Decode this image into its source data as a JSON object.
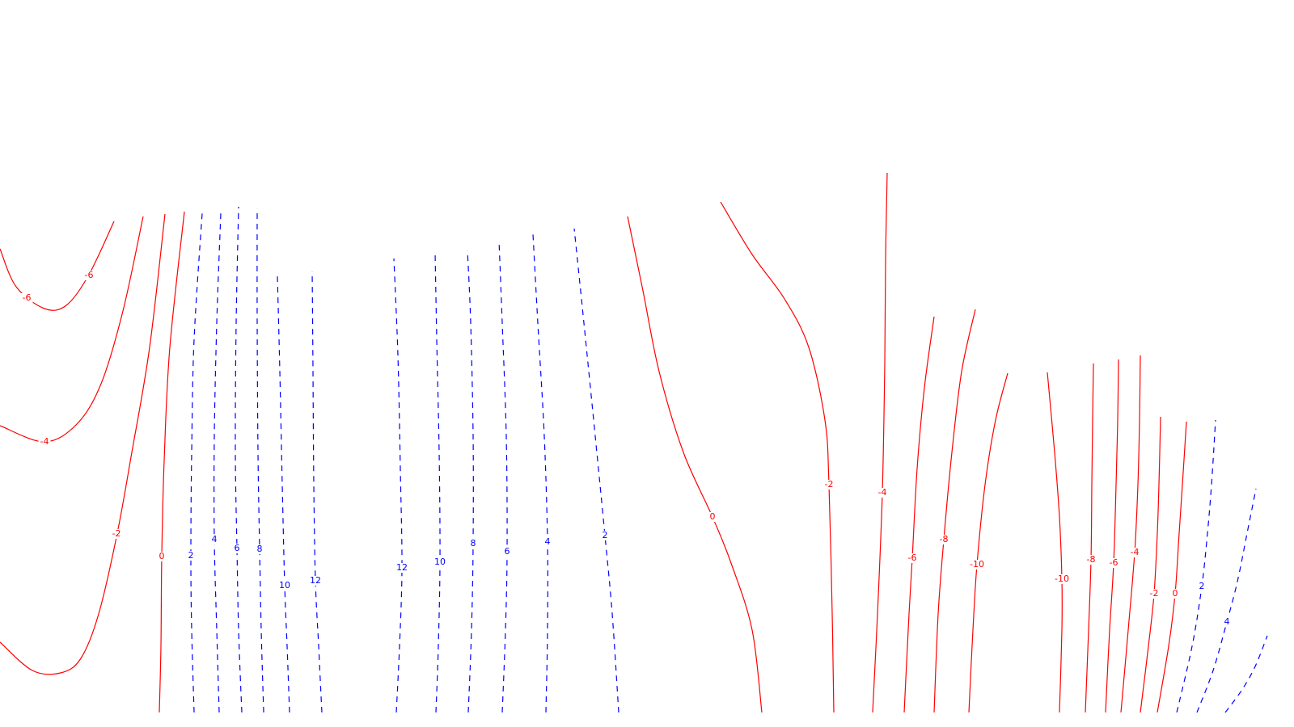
{
  "chart_data": {
    "type": "contour",
    "title": "",
    "xlabel": "",
    "ylabel": "",
    "grid": false,
    "legend": "none",
    "colors": {
      "negative": "#ff0000",
      "positive": "#0000ff"
    },
    "line_styles": {
      "negative": "solid",
      "positive": "dashed"
    },
    "contours": [
      {
        "level": "-6",
        "sign": "neg",
        "points": [
          [
            0,
            308
          ],
          [
            20,
            355
          ],
          [
            55,
            382
          ],
          [
            82,
            378
          ],
          [
            110,
            340
          ],
          [
            141,
            274
          ]
        ],
        "labels": [
          [
            33,
            369
          ],
          [
            110,
            341
          ]
        ]
      },
      {
        "level": "-4",
        "sign": "neg",
        "points": [
          [
            0,
            527
          ],
          [
            55,
            547
          ],
          [
            95,
            525
          ],
          [
            125,
            475
          ],
          [
            152,
            385
          ],
          [
            177,
            268
          ]
        ],
        "labels": [
          [
            55,
            547
          ]
        ]
      },
      {
        "level": "-2",
        "sign": "neg",
        "points": [
          [
            0,
            795
          ],
          [
            40,
            830
          ],
          [
            75,
            833
          ],
          [
            100,
            815
          ],
          [
            122,
            760
          ],
          [
            145,
            660
          ],
          [
            163,
            560
          ],
          [
            185,
            430
          ],
          [
            204,
            265
          ]
        ],
        "labels": [
          [
            144,
            661
          ]
        ]
      },
      {
        "level": "0",
        "sign": "neg",
        "points": [
          [
            197,
            882
          ],
          [
            199,
            800
          ],
          [
            200,
            688
          ],
          [
            203,
            570
          ],
          [
            210,
            430
          ],
          [
            228,
            262
          ]
        ],
        "labels": [
          [
            200,
            689
          ]
        ]
      },
      {
        "level": "2",
        "sign": "pos",
        "points": [
          [
            240,
            882
          ],
          [
            237,
            780
          ],
          [
            236,
            687
          ],
          [
            237,
            560
          ],
          [
            240,
            420
          ],
          [
            250,
            264
          ]
        ],
        "labels": [
          [
            236,
            688
          ]
        ]
      },
      {
        "level": "4",
        "sign": "pos",
        "points": [
          [
            271,
            882
          ],
          [
            268,
            780
          ],
          [
            265,
            668
          ],
          [
            265,
            540
          ],
          [
            268,
            400
          ],
          [
            273,
            264
          ]
        ],
        "labels": [
          [
            265,
            668
          ]
        ]
      },
      {
        "level": "6",
        "sign": "pos",
        "points": [
          [
            299,
            882
          ],
          [
            295,
            780
          ],
          [
            293,
            679
          ],
          [
            291,
            560
          ],
          [
            292,
            400
          ],
          [
            295,
            256
          ]
        ],
        "labels": [
          [
            293,
            679
          ]
        ]
      },
      {
        "level": "8",
        "sign": "pos",
        "points": [
          [
            326,
            882
          ],
          [
            323,
            780
          ],
          [
            321,
            680
          ],
          [
            319,
            560
          ],
          [
            318,
            400
          ],
          [
            318,
            258
          ]
        ],
        "labels": [
          [
            321,
            680
          ]
        ]
      },
      {
        "level": "10",
        "sign": "pos",
        "points": [
          [
            358,
            882
          ],
          [
            355,
            800
          ],
          [
            352,
            725
          ],
          [
            349,
            600
          ],
          [
            346,
            460
          ],
          [
            343,
            342
          ]
        ],
        "labels": [
          [
            352,
            725
          ]
        ]
      },
      {
        "level": "12",
        "sign": "pos",
        "points": [
          [
            398,
            882
          ],
          [
            394,
            800
          ],
          [
            390,
            719
          ],
          [
            388,
            600
          ],
          [
            387,
            460
          ],
          [
            386,
            336
          ]
        ],
        "labels": [
          [
            390,
            719
          ]
        ]
      },
      {
        "level": "12",
        "sign": "pos",
        "points": [
          [
            490,
            882
          ],
          [
            494,
            800
          ],
          [
            497,
            703
          ],
          [
            495,
            580
          ],
          [
            492,
            440
          ],
          [
            487,
            320
          ]
        ],
        "labels": [
          [
            497,
            703
          ]
        ]
      },
      {
        "level": "10",
        "sign": "pos",
        "points": [
          [
            539,
            882
          ],
          [
            542,
            800
          ],
          [
            544,
            696
          ],
          [
            543,
            560
          ],
          [
            540,
            420
          ],
          [
            538,
            312
          ]
        ],
        "labels": [
          [
            544,
            696
          ]
        ]
      },
      {
        "level": "8",
        "sign": "pos",
        "points": [
          [
            579,
            882
          ],
          [
            583,
            780
          ],
          [
            585,
            673
          ],
          [
            585,
            540
          ],
          [
            582,
            400
          ],
          [
            578,
            310
          ]
        ],
        "labels": [
          [
            585,
            673
          ]
        ]
      },
      {
        "level": "6",
        "sign": "pos",
        "points": [
          [
            621,
            882
          ],
          [
            625,
            780
          ],
          [
            627,
            683
          ],
          [
            626,
            540
          ],
          [
            621,
            400
          ],
          [
            617,
            298
          ]
        ],
        "labels": [
          [
            627,
            683
          ]
        ]
      },
      {
        "level": "4",
        "sign": "pos",
        "points": [
          [
            675,
            882
          ],
          [
            677,
            780
          ],
          [
            677,
            671
          ],
          [
            673,
            540
          ],
          [
            665,
            400
          ],
          [
            659,
            290
          ]
        ],
        "labels": [
          [
            677,
            671
          ]
        ]
      },
      {
        "level": "2",
        "sign": "pos",
        "points": [
          [
            765,
            882
          ],
          [
            757,
            760
          ],
          [
            748,
            663
          ],
          [
            736,
            540
          ],
          [
            722,
            400
          ],
          [
            710,
            283
          ]
        ],
        "labels": [
          [
            748,
            663
          ]
        ]
      },
      {
        "level": "0",
        "sign": "neg",
        "points": [
          [
            942,
            882
          ],
          [
            930,
            780
          ],
          [
            905,
            700
          ],
          [
            881,
            640
          ],
          [
            845,
            560
          ],
          [
            815,
            460
          ],
          [
            795,
            360
          ],
          [
            776,
            268
          ]
        ],
        "labels": [
          [
            881,
            640
          ]
        ]
      },
      {
        "level": "-2",
        "sign": "neg",
        "points": [
          [
            1031,
            882
          ],
          [
            1029,
            760
          ],
          [
            1025,
            600
          ],
          [
            1020,
            520
          ],
          [
            1000,
            430
          ],
          [
            970,
            370
          ],
          [
            930,
            315
          ],
          [
            891,
            250
          ]
        ],
        "labels": [
          [
            1025,
            600
          ]
        ]
      },
      {
        "level": "-4",
        "sign": "neg",
        "points": [
          [
            1079,
            882
          ],
          [
            1085,
            760
          ],
          [
            1091,
            610
          ],
          [
            1094,
            450
          ],
          [
            1095,
            320
          ],
          [
            1097,
            214
          ]
        ],
        "labels": [
          [
            1091,
            610
          ]
        ]
      },
      {
        "level": "-6",
        "sign": "neg",
        "points": [
          [
            1118,
            882
          ],
          [
            1124,
            760
          ],
          [
            1128,
            691
          ],
          [
            1134,
            580
          ],
          [
            1143,
            480
          ],
          [
            1155,
            392
          ]
        ],
        "labels": [
          [
            1128,
            691
          ]
        ]
      },
      {
        "level": "-8",
        "sign": "neg",
        "points": [
          [
            1155,
            882
          ],
          [
            1160,
            760
          ],
          [
            1167,
            668
          ],
          [
            1177,
            560
          ],
          [
            1189,
            460
          ],
          [
            1206,
            383
          ]
        ],
        "labels": [
          [
            1167,
            668
          ]
        ]
      },
      {
        "level": "-10",
        "sign": "neg",
        "points": [
          [
            1198,
            882
          ],
          [
            1203,
            780
          ],
          [
            1208,
            699
          ],
          [
            1218,
            600
          ],
          [
            1231,
            520
          ],
          [
            1246,
            462
          ]
        ],
        "labels": [
          [
            1208,
            699
          ]
        ]
      },
      {
        "level": "-10",
        "sign": "neg",
        "points": [
          [
            1310,
            882
          ],
          [
            1313,
            780
          ],
          [
            1313,
            717
          ],
          [
            1310,
            640
          ],
          [
            1304,
            560
          ],
          [
            1295,
            461
          ]
        ],
        "labels": [
          [
            1313,
            717
          ]
        ]
      },
      {
        "level": "-8",
        "sign": "neg",
        "points": [
          [
            1342,
            882
          ],
          [
            1346,
            780
          ],
          [
            1349,
            693
          ],
          [
            1350,
            600
          ],
          [
            1351,
            520
          ],
          [
            1352,
            450
          ]
        ],
        "labels": [
          [
            1349,
            693
          ]
        ]
      },
      {
        "level": "-6",
        "sign": "neg",
        "points": [
          [
            1367,
            882
          ],
          [
            1372,
            780
          ],
          [
            1377,
            697
          ],
          [
            1380,
            600
          ],
          [
            1382,
            520
          ],
          [
            1383,
            445
          ]
        ],
        "labels": [
          [
            1377,
            697
          ]
        ]
      },
      {
        "level": "-4",
        "sign": "neg",
        "points": [
          [
            1386,
            882
          ],
          [
            1395,
            780
          ],
          [
            1403,
            684
          ],
          [
            1407,
            600
          ],
          [
            1409,
            520
          ],
          [
            1410,
            440
          ]
        ],
        "labels": [
          [
            1403,
            684
          ]
        ]
      },
      {
        "level": "-2",
        "sign": "neg",
        "points": [
          [
            1410,
            882
          ],
          [
            1420,
            800
          ],
          [
            1427,
            735
          ],
          [
            1431,
            660
          ],
          [
            1433,
            600
          ],
          [
            1435,
            516
          ]
        ],
        "labels": [
          [
            1427,
            735
          ]
        ]
      },
      {
        "level": "0",
        "sign": "neg",
        "points": [
          [
            1431,
            882
          ],
          [
            1445,
            800
          ],
          [
            1453,
            735
          ],
          [
            1458,
            660
          ],
          [
            1462,
            600
          ],
          [
            1467,
            522
          ]
        ],
        "labels": [
          [
            1453,
            735
          ]
        ]
      },
      {
        "level": "2",
        "sign": "pos",
        "points": [
          [
            1455,
            882
          ],
          [
            1474,
            800
          ],
          [
            1486,
            726
          ],
          [
            1493,
            660
          ],
          [
            1498,
            600
          ],
          [
            1503,
            520
          ]
        ],
        "labels": [
          [
            1486,
            726
          ]
        ]
      },
      {
        "level": "4",
        "sign": "pos",
        "points": [
          [
            1480,
            882
          ],
          [
            1500,
            830
          ],
          [
            1517,
            770
          ],
          [
            1530,
            720
          ],
          [
            1542,
            660
          ],
          [
            1553,
            605
          ]
        ],
        "labels": [
          [
            1517,
            770
          ]
        ]
      },
      {
        "level": "",
        "sign": "pos",
        "points": [
          [
            1515,
            882
          ],
          [
            1535,
            855
          ],
          [
            1552,
            825
          ],
          [
            1567,
            787
          ]
        ],
        "labels": []
      }
    ]
  }
}
